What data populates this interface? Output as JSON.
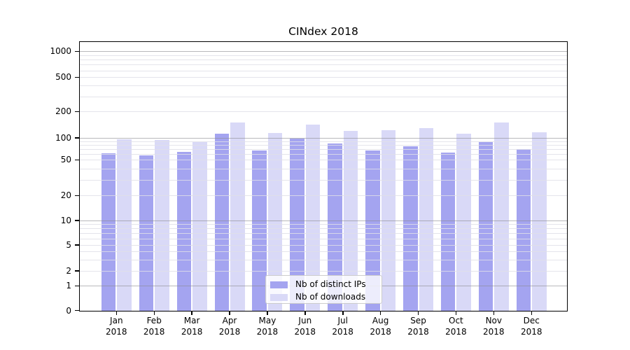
{
  "title": "CINdex 2018",
  "chart_data": {
    "type": "bar",
    "title": "CINdex 2018",
    "categories": [
      "Jan",
      "Feb",
      "Mar",
      "Apr",
      "May",
      "Jun",
      "Jul",
      "Aug",
      "Sep",
      "Oct",
      "Nov",
      "Dec"
    ],
    "year": "2018",
    "series": [
      {
        "name": "Nb of distinct IPs",
        "color": "#a4a4f0",
        "values": [
          61,
          58,
          64,
          111,
          67,
          97,
          83,
          67,
          77,
          63,
          87,
          70
        ]
      },
      {
        "name": "Nb of downloads",
        "color": "#d9d9f7",
        "values": [
          95,
          93,
          88,
          149,
          114,
          141,
          120,
          121,
          129,
          111,
          151,
          116
        ]
      }
    ],
    "xlabel": "",
    "ylabel": "",
    "yscale": "symlog",
    "y_ticks": [
      0,
      1,
      2,
      5,
      10,
      20,
      50,
      100,
      200,
      500,
      1000
    ],
    "ylim": [
      0,
      1200
    ],
    "grid": true,
    "legend_position": "lower-center"
  }
}
